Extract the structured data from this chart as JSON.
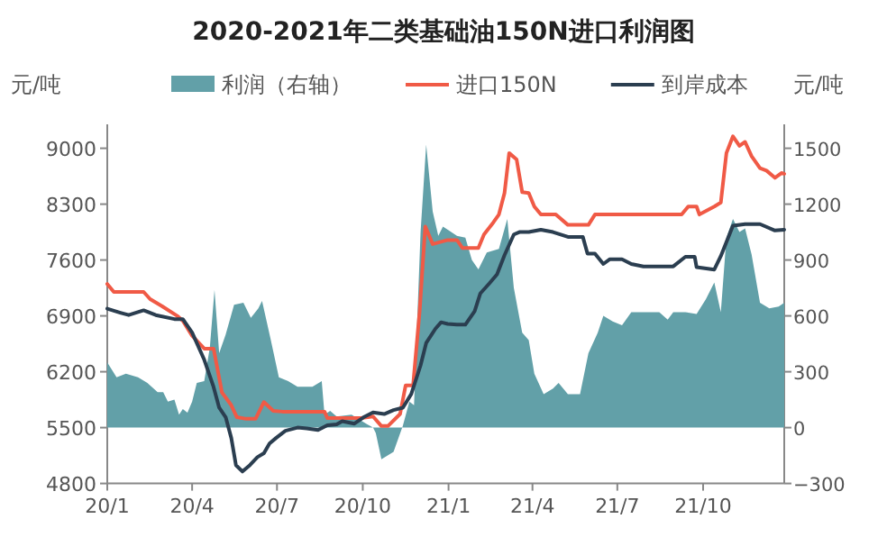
{
  "chart_data": {
    "type": "line",
    "title": "2020-2021年二类基础油150N进口利润图",
    "ylabel": "元/吨",
    "y2label": "元/吨",
    "xlim": [
      "2020-01-01",
      "2021-12-27"
    ],
    "xticks": [
      {
        "value": "2020-01-01",
        "label": "20/1"
      },
      {
        "value": "2020-04-01",
        "label": "20/4"
      },
      {
        "value": "2020-07-01",
        "label": "20/7"
      },
      {
        "value": "2020-10-01",
        "label": "20/10"
      },
      {
        "value": "2021-01-01",
        "label": "21/1"
      },
      {
        "value": "2021-04-01",
        "label": "21/4"
      },
      {
        "value": "2021-07-01",
        "label": "21/7"
      },
      {
        "value": "2021-10-01",
        "label": "21/10"
      }
    ],
    "ylim": [
      4800,
      9300
    ],
    "yticks": [
      4800,
      5500,
      6200,
      6900,
      7600,
      8300,
      9000
    ],
    "y2lim": [
      -300,
      1628.6
    ],
    "y2ticks": [
      -300,
      0,
      300,
      600,
      900,
      1200,
      1500
    ],
    "legend": "top",
    "grid": false,
    "series": [
      {
        "name": "利润（右轴）",
        "type": "area",
        "axis": "y2",
        "color": "#62a0a8",
        "x": [
          "2020-01-01",
          "2020-01-11",
          "2020-01-21",
          "2020-02-03",
          "2020-02-13",
          "2020-02-24",
          "2020-03-01",
          "2020-03-06",
          "2020-03-13",
          "2020-03-18",
          "2020-03-22",
          "2020-03-27",
          "2020-04-01",
          "2020-04-06",
          "2020-04-14",
          "2020-04-20",
          "2020-04-25",
          "2020-04-30",
          "2020-05-07",
          "2020-05-16",
          "2020-05-26",
          "2020-06-03",
          "2020-06-11",
          "2020-06-15",
          "2020-06-24",
          "2020-07-03",
          "2020-07-13",
          "2020-07-23",
          "2020-08-08",
          "2020-08-18",
          "2020-08-21",
          "2020-08-27",
          "2020-09-03",
          "2020-09-19",
          "2020-10-05",
          "2020-10-12",
          "2020-10-15",
          "2020-10-21",
          "2020-11-03",
          "2020-11-13",
          "2020-11-20",
          "2020-11-25",
          "2020-12-02",
          "2020-12-08",
          "2020-12-15",
          "2020-12-21",
          "2020-12-26",
          "2021-01-10",
          "2021-01-19",
          "2021-01-26",
          "2021-02-02",
          "2021-02-11",
          "2021-02-24",
          "2021-03-05",
          "2021-03-12",
          "2021-03-21",
          "2021-03-28",
          "2021-04-03",
          "2021-04-13",
          "2021-04-23",
          "2021-04-29",
          "2021-05-09",
          "2021-05-22",
          "2021-05-31",
          "2021-06-10",
          "2021-06-16",
          "2021-06-26",
          "2021-07-06",
          "2021-07-16",
          "2021-07-26",
          "2021-08-15",
          "2021-08-24",
          "2021-08-30",
          "2021-09-12",
          "2021-09-24",
          "2021-10-04",
          "2021-10-13",
          "2021-10-20",
          "2021-10-26",
          "2021-11-02",
          "2021-11-09",
          "2021-11-15",
          "2021-11-22",
          "2021-12-01",
          "2021-12-11",
          "2021-12-21",
          "2021-12-27"
        ],
        "values": [
          350,
          270,
          290,
          270,
          240,
          190,
          190,
          140,
          150,
          70,
          100,
          80,
          140,
          240,
          250,
          430,
          740,
          400,
          500,
          660,
          670,
          590,
          640,
          680,
          480,
          270,
          250,
          220,
          220,
          250,
          70,
          90,
          60,
          70,
          20,
          0,
          -30,
          -170,
          -130,
          10,
          140,
          120,
          1050,
          1520,
          1160,
          1030,
          1080,
          1030,
          1020,
          900,
          850,
          940,
          960,
          1120,
          750,
          510,
          470,
          290,
          180,
          210,
          240,
          180,
          180,
          400,
          510,
          600,
          570,
          550,
          620,
          620,
          620,
          580,
          620,
          620,
          610,
          690,
          780,
          620,
          1020,
          1120,
          1050,
          1070,
          930,
          670,
          640,
          650,
          670
        ]
      },
      {
        "name": "进口150N",
        "color": "#f05a46",
        "x": [
          "2020-01-01",
          "2020-01-08",
          "2020-02-09",
          "2020-02-16",
          "2020-02-29",
          "2020-03-16",
          "2020-03-22",
          "2020-04-01",
          "2020-04-14",
          "2020-04-24",
          "2020-05-03",
          "2020-05-13",
          "2020-05-19",
          "2020-05-29",
          "2020-06-08",
          "2020-06-17",
          "2020-06-27",
          "2020-07-07",
          "2020-08-21",
          "2020-08-24",
          "2020-09-29",
          "2020-10-12",
          "2020-10-21",
          "2020-10-28",
          "2020-11-10",
          "2020-11-16",
          "2020-11-24",
          "2020-12-01",
          "2020-12-07",
          "2020-12-15",
          "2020-12-31",
          "2021-01-10",
          "2021-01-16",
          "2021-02-02",
          "2021-02-08",
          "2021-02-18",
          "2021-02-24",
          "2021-03-02",
          "2021-03-07",
          "2021-03-15",
          "2021-03-21",
          "2021-03-28",
          "2021-04-03",
          "2021-04-10",
          "2021-04-26",
          "2021-05-09",
          "2021-05-31",
          "2021-06-07",
          "2021-09-08",
          "2021-09-15",
          "2021-09-24",
          "2021-09-27",
          "2021-10-13",
          "2021-10-20",
          "2021-10-26",
          "2021-11-02",
          "2021-11-09",
          "2021-11-15",
          "2021-11-22",
          "2021-12-01",
          "2021-12-08",
          "2021-12-17",
          "2021-12-24",
          "2021-12-27"
        ],
        "values": [
          7300,
          7200,
          7200,
          7110,
          7020,
          6900,
          6840,
          6650,
          6490,
          6490,
          5940,
          5780,
          5630,
          5610,
          5610,
          5820,
          5710,
          5700,
          5700,
          5620,
          5620,
          5640,
          5520,
          5520,
          5670,
          6030,
          6030,
          6960,
          8020,
          7800,
          7850,
          7850,
          7750,
          7750,
          7920,
          8070,
          8170,
          8440,
          8940,
          8860,
          8450,
          8440,
          8270,
          8170,
          8170,
          8040,
          8040,
          8170,
          8170,
          8270,
          8270,
          8170,
          8270,
          8320,
          8940,
          9150,
          9030,
          9080,
          8900,
          8750,
          8720,
          8630,
          8690,
          8680
        ]
      },
      {
        "name": "到岸成本",
        "color": "#2b3e50",
        "x": [
          "2020-01-01",
          "2020-01-15",
          "2020-01-24",
          "2020-02-09",
          "2020-02-22",
          "2020-03-13",
          "2020-03-22",
          "2020-04-01",
          "2020-04-14",
          "2020-04-24",
          "2020-04-30",
          "2020-05-07",
          "2020-05-13",
          "2020-05-18",
          "2020-05-25",
          "2020-06-02",
          "2020-06-10",
          "2020-06-17",
          "2020-06-23",
          "2020-06-30",
          "2020-07-10",
          "2020-07-23",
          "2020-08-02",
          "2020-08-14",
          "2020-08-24",
          "2020-09-03",
          "2020-09-09",
          "2020-09-22",
          "2020-10-02",
          "2020-10-12",
          "2020-10-24",
          "2020-11-03",
          "2020-11-13",
          "2020-11-22",
          "2020-12-02",
          "2020-12-08",
          "2020-12-18",
          "2020-12-24",
          "2020-12-31",
          "2021-01-10",
          "2021-01-19",
          "2021-01-29",
          "2021-02-04",
          "2021-02-14",
          "2021-02-22",
          "2021-03-02",
          "2021-03-12",
          "2021-03-18",
          "2021-03-28",
          "2021-04-10",
          "2021-04-23",
          "2021-05-09",
          "2021-05-25",
          "2021-05-30",
          "2021-06-07",
          "2021-06-16",
          "2021-06-23",
          "2021-07-06",
          "2021-07-16",
          "2021-07-29",
          "2021-08-30",
          "2021-09-12",
          "2021-09-22",
          "2021-09-24",
          "2021-10-13",
          "2021-10-20",
          "2021-11-02",
          "2021-11-15",
          "2021-12-01",
          "2021-12-17",
          "2021-12-27"
        ],
        "values": [
          6990,
          6940,
          6910,
          6970,
          6910,
          6860,
          6860,
          6690,
          6350,
          6010,
          5750,
          5630,
          5370,
          5030,
          4950,
          5030,
          5130,
          5180,
          5300,
          5370,
          5460,
          5500,
          5490,
          5470,
          5530,
          5540,
          5580,
          5550,
          5630,
          5690,
          5670,
          5720,
          5750,
          5920,
          6280,
          6560,
          6740,
          6820,
          6800,
          6790,
          6790,
          6960,
          7180,
          7310,
          7420,
          7660,
          7920,
          7950,
          7950,
          7980,
          7950,
          7890,
          7890,
          7680,
          7680,
          7550,
          7610,
          7610,
          7550,
          7520,
          7520,
          7640,
          7640,
          7510,
          7480,
          7650,
          8030,
          8050,
          8050,
          7970,
          7980
        ]
      }
    ]
  }
}
